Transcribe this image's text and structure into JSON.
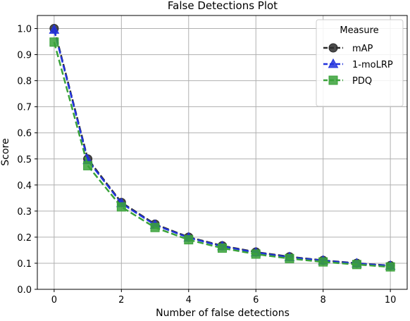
{
  "chart_data": {
    "type": "line",
    "title": "False Detections Plot",
    "xlabel": "Number of false detections",
    "ylabel": "Score",
    "xlim": [
      -0.5,
      10.5
    ],
    "ylim": [
      0.0,
      1.05
    ],
    "x_ticks": [
      0,
      2,
      4,
      6,
      8,
      10
    ],
    "y_ticks": [
      0.0,
      0.1,
      0.2,
      0.3,
      0.4,
      0.5,
      0.6,
      0.7,
      0.8,
      0.9,
      1.0
    ],
    "x_tick_labels": [
      "0",
      "2",
      "4",
      "6",
      "8",
      "10"
    ],
    "y_tick_labels": [
      "0.0",
      "0.1",
      "0.2",
      "0.3",
      "0.4",
      "0.5",
      "0.6",
      "0.7",
      "0.8",
      "0.9",
      "1.0"
    ],
    "grid": true,
    "legend": {
      "title": "Measure",
      "placement": "top-right"
    },
    "x": [
      0,
      1,
      2,
      3,
      4,
      5,
      6,
      7,
      8,
      9,
      10
    ],
    "series": [
      {
        "name": "mAP",
        "color": "#2b2b2b",
        "marker": "circle",
        "values": [
          1.0,
          0.5,
          0.333,
          0.25,
          0.2,
          0.167,
          0.143,
          0.125,
          0.111,
          0.1,
          0.091
        ]
      },
      {
        "name": "1-moLRP",
        "color": "#2233dd",
        "marker": "triangle",
        "values": [
          0.995,
          0.495,
          0.33,
          0.247,
          0.198,
          0.165,
          0.141,
          0.123,
          0.11,
          0.099,
          0.09
        ]
      },
      {
        "name": "PDQ",
        "color": "#3aa23a",
        "marker": "square",
        "values": [
          0.948,
          0.474,
          0.316,
          0.237,
          0.19,
          0.158,
          0.135,
          0.118,
          0.105,
          0.095,
          0.086
        ]
      }
    ]
  }
}
